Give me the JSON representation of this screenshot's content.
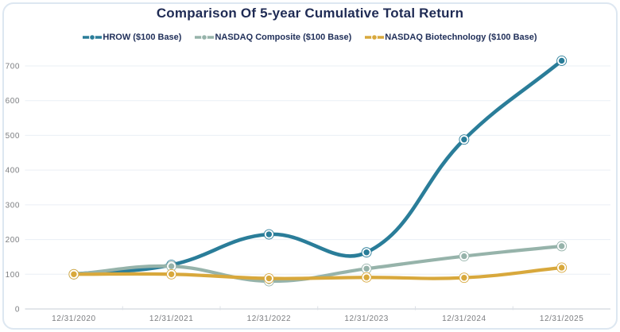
{
  "page": {
    "background": "#ffffff",
    "card_border_color": "#dde7f1"
  },
  "header": {
    "title": "Comparison Of 5-year Cumulative Total Return",
    "title_color": "#1f2b54"
  },
  "legend": {
    "position": "top",
    "text_color": "#21305a"
  },
  "chart_data": {
    "type": "line",
    "title": "Comparison Of 5-year Cumulative Total Return",
    "categories": [
      "12/31/2020",
      "12/31/2021",
      "12/31/2022",
      "12/31/2023",
      "12/31/2024",
      "12/31/2025"
    ],
    "series": [
      {
        "name": "HROW ($100 Base)",
        "color": "#2a7d99",
        "values": [
          100,
          127,
          215,
          163,
          488,
          715
        ]
      },
      {
        "name": "NASDAQ Composite ($100 Base)",
        "color": "#96b3aa",
        "values": [
          100,
          123,
          80,
          116,
          152,
          181
        ]
      },
      {
        "name": "NASDAQ Biotechnology ($100 Base)",
        "color": "#d8a83c",
        "values": [
          100,
          100,
          88,
          91,
          90,
          119
        ]
      }
    ],
    "xlabel": "",
    "ylabel": "",
    "ylim": [
      0,
      700
    ],
    "yticks": [
      0,
      100,
      200,
      300,
      400,
      500,
      600,
      700
    ],
    "grid": true,
    "legend_position": "top",
    "line_tension": 0.4,
    "grid_color": "#eaeff5",
    "axis_color": "#d8dde4",
    "tick_mark_color": "#dce0e6",
    "tick_label_color": "#7b7d80"
  }
}
